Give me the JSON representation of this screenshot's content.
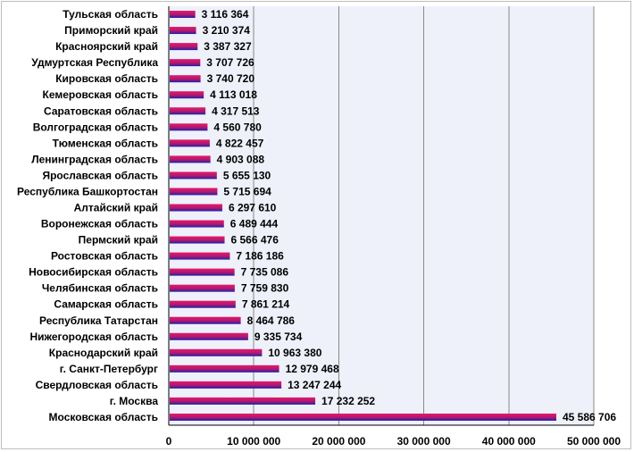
{
  "chart_data": {
    "type": "bar",
    "orientation": "horizontal",
    "title": "",
    "xlabel": "",
    "ylabel": "",
    "xlim": [
      0,
      50000000
    ],
    "ticks": [
      "0",
      "10 000 000",
      "20 000 000",
      "30 000 000",
      "40 000 000",
      "50 000 000"
    ],
    "tick_values": [
      0,
      10000000,
      20000000,
      30000000,
      40000000,
      50000000
    ],
    "grid": true,
    "legend": "none",
    "colors": {
      "bar_top": "#e6196b",
      "bar_bottom": "#1f1fa8",
      "plot_bg": "#eef0fa",
      "grid": "#8a8a8a"
    },
    "categories": [
      "Тульская область",
      "Приморский край",
      "Красноярский край",
      "Удмуртская Республика",
      "Кировская область",
      "Кемеровская область",
      "Саратовская область",
      "Волгоградская область",
      "Тюменская область",
      "Ленинградская область",
      "Ярославская область",
      "Республика Башкортостан",
      "Алтайский край",
      "Воронежская область",
      "Пермский край",
      "Ростовская область",
      "Новосибирская область",
      "Челябинская область",
      "Самарская область",
      "Республика Татарстан",
      "Нижегородская область",
      "Краснодарский край",
      "г. Санкт-Петербург",
      "Свердловская область",
      "г. Москва",
      "Московская область"
    ],
    "values": [
      3116364,
      3210374,
      3387327,
      3707726,
      3740720,
      4113018,
      4317513,
      4560780,
      4822457,
      4903088,
      5655130,
      5715694,
      6297610,
      6489444,
      6566476,
      7186186,
      7735086,
      7759830,
      7861214,
      8464786,
      9335734,
      10963380,
      12979468,
      13247244,
      17232252,
      45586706
    ],
    "value_labels": [
      "3 116 364",
      "3 210 374",
      "3 387 327",
      "3 707 726",
      "3 740 720",
      "4 113 018",
      "4 317 513",
      "4 560 780",
      "4 822 457",
      "4 903 088",
      "5 655 130",
      "5 715 694",
      "6 297 610",
      "6 489 444",
      "6 566 476",
      "7 186 186",
      "7 735 086",
      "7 759 830",
      "7 861 214",
      "8 464 786",
      "9 335 734",
      "10 963 380",
      "12 979 468",
      "13 247 244",
      "17 232 252",
      "45 586 706"
    ]
  }
}
